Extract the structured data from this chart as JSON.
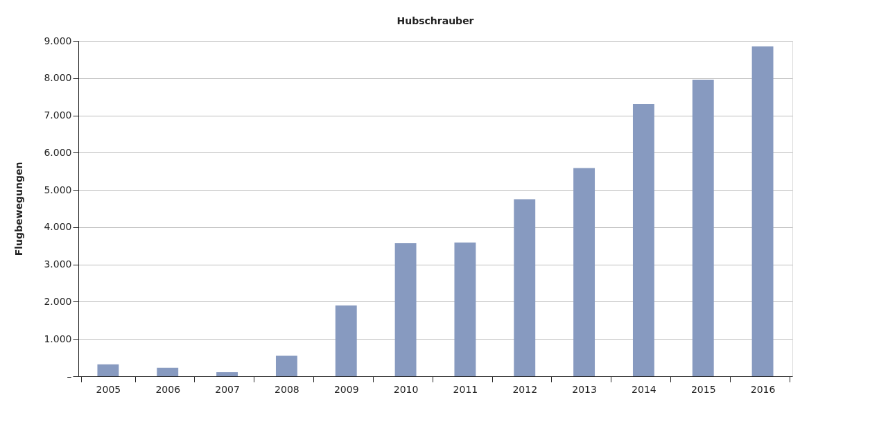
{
  "chart_data": {
    "type": "bar",
    "title": "Hubschrauber",
    "ylabel": "Flugbewegungen",
    "categories": [
      "2005",
      "2006",
      "2007",
      "2008",
      "2009",
      "2010",
      "2011",
      "2012",
      "2013",
      "2014",
      "2015",
      "2016"
    ],
    "values": [
      320,
      230,
      110,
      550,
      1900,
      3570,
      3590,
      4750,
      5590,
      7310,
      7960,
      8850
    ],
    "color": "#879ac0",
    "ylim": [
      0,
      9000
    ],
    "yticks": [
      {
        "value": 0,
        "label": "–"
      },
      {
        "value": 1000,
        "label": "1.000"
      },
      {
        "value": 2000,
        "label": "2.000"
      },
      {
        "value": 3000,
        "label": "3.000"
      },
      {
        "value": 4000,
        "label": "4.000"
      },
      {
        "value": 5000,
        "label": "5.000"
      },
      {
        "value": 6000,
        "label": "6.000"
      },
      {
        "value": 7000,
        "label": "7.000"
      },
      {
        "value": 8000,
        "label": "8.000"
      },
      {
        "value": 9000,
        "label": "9.000"
      }
    ],
    "grid": "y"
  }
}
